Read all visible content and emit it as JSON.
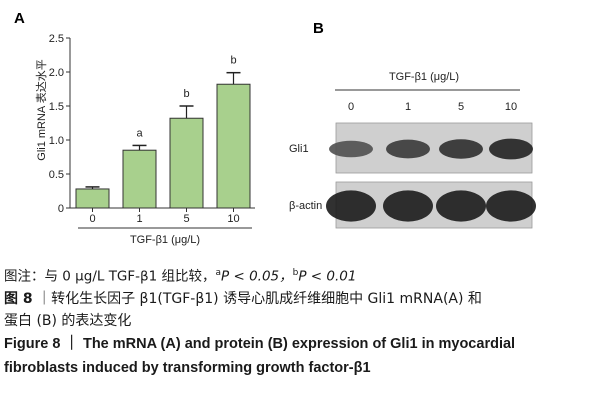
{
  "panels": {
    "a": "A",
    "b": "B"
  },
  "chart_data": {
    "type": "bar",
    "categories": [
      "0",
      "1",
      "5",
      "10"
    ],
    "values": [
      0.28,
      0.85,
      1.32,
      1.82
    ],
    "errors": [
      0.03,
      0.07,
      0.18,
      0.17
    ],
    "significance": [
      "",
      "a",
      "b",
      "b"
    ],
    "ylabel": "Gli1 mRNA 表达水平",
    "xlabel": "TGF-β1 (μg/L)",
    "ylim": [
      0,
      2.5
    ],
    "yticks": [
      "0",
      "0.5",
      "1.0",
      "1.5",
      "2.0",
      "2.5"
    ],
    "bar_color": "#a8d08d",
    "bar_edge": "#333333",
    "grid": false
  },
  "blot": {
    "title": "TGF-β1 (μg/L)",
    "lanes": [
      "0",
      "1",
      "5",
      "10"
    ],
    "rows": [
      {
        "label": "Gli1",
        "intensities": [
          0.55,
          0.72,
          0.8,
          0.9
        ]
      },
      {
        "label": "β-actin",
        "intensities": [
          0.95,
          0.95,
          0.95,
          0.95
        ]
      }
    ]
  },
  "caption": {
    "note_prefix": "图注：与 0 μg/L TGF-β1 组比较，",
    "note_a_sup": "a",
    "note_a": "P < 0.05，",
    "note_b_sup": "b",
    "note_b": "P < 0.01",
    "zh_label": "图 8",
    "zh_line1": "｜转化生长因子 β1(TGF-β1) 诱导心肌成纤维细胞中 Gli1 mRNA(A) 和",
    "zh_line2": "蛋白 (B) 的表达变化",
    "en_line1": "Figure 8 ｜ The mRNA (A) and protein (B) expression of Gli1 in myocardial",
    "en_line2": "fibroblasts induced by transforming growth factor-β1"
  }
}
